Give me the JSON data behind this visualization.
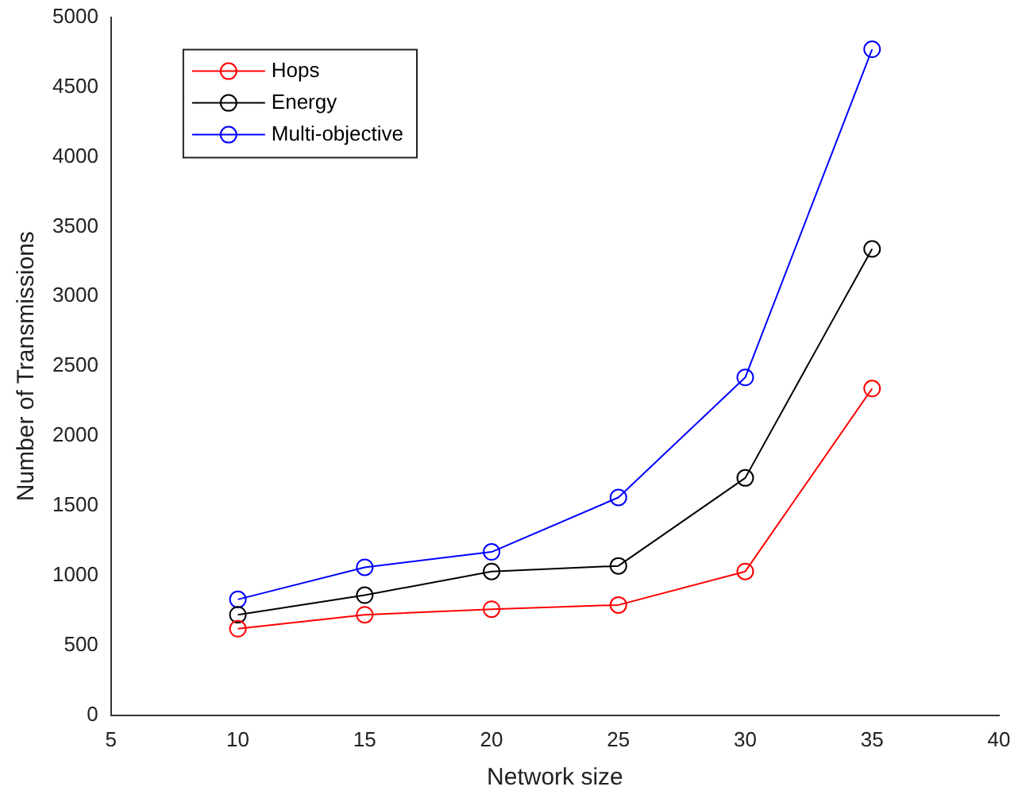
{
  "chart_data": {
    "type": "line",
    "xlabel": "Network size",
    "ylabel": "Number of Transmissions",
    "x": [
      10,
      15,
      20,
      25,
      30,
      35
    ],
    "series": [
      {
        "name": "Hops",
        "color": "#ff0000",
        "values": [
          620,
          720,
          760,
          790,
          1030,
          2340
        ]
      },
      {
        "name": "Energy",
        "color": "#000000",
        "values": [
          720,
          860,
          1030,
          1070,
          1700,
          3340
        ]
      },
      {
        "name": "Multi-objective",
        "color": "#0000ff",
        "values": [
          830,
          1060,
          1170,
          1560,
          2420,
          4770
        ]
      }
    ],
    "xlim": [
      5,
      40
    ],
    "xticks": [
      5,
      10,
      15,
      20,
      25,
      30,
      35,
      40
    ],
    "ylim": [
      0,
      5000
    ],
    "yticks": [
      0,
      500,
      1000,
      1500,
      2000,
      2500,
      3000,
      3500,
      4000,
      4500,
      5000
    ],
    "grid": false,
    "legend": "top left",
    "marker": "circle",
    "line_style": "solid"
  }
}
